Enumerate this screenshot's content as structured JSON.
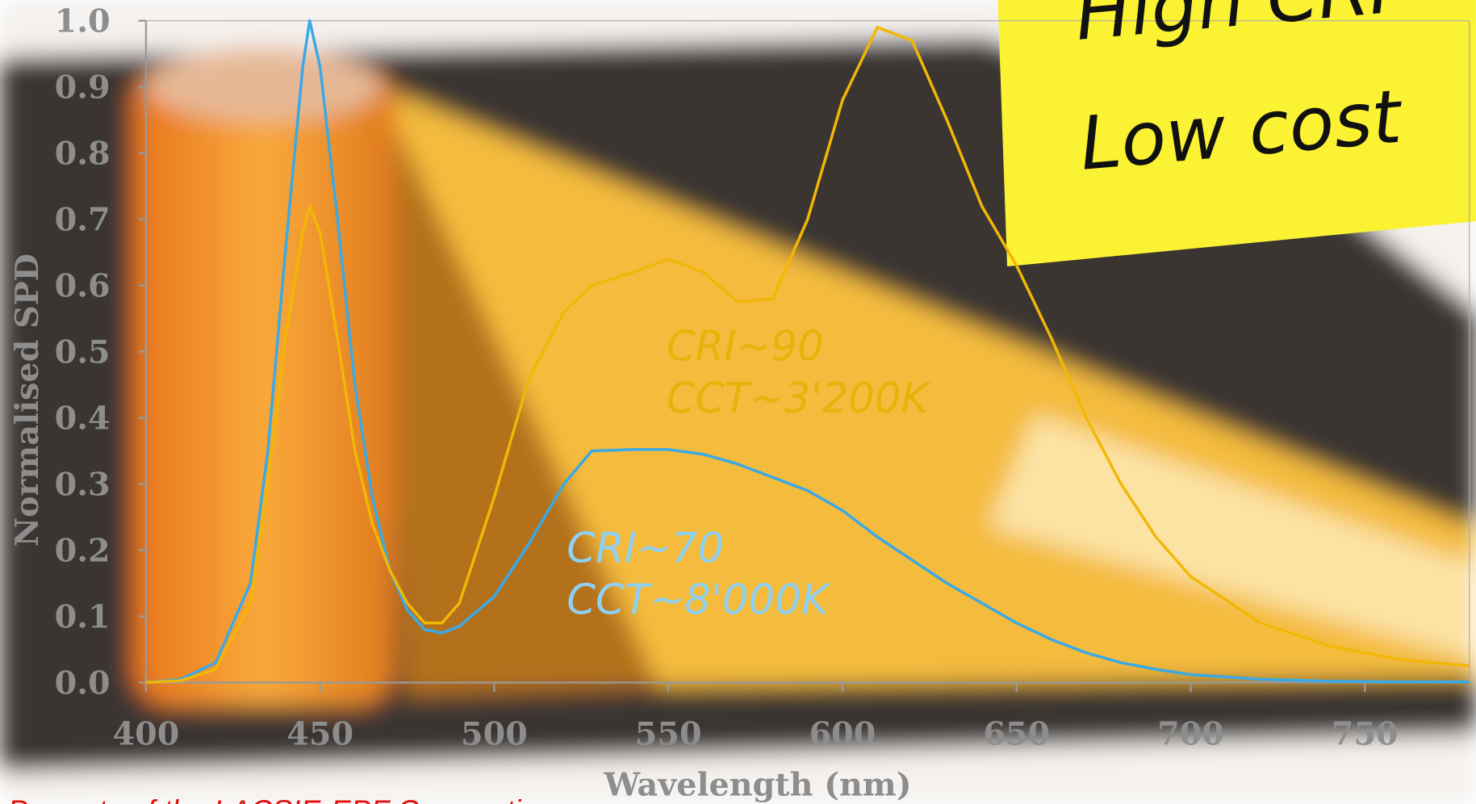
{
  "chart_data": {
    "type": "line",
    "x_label": "Wavelength (nm)",
    "y_label": "Normalised SPD",
    "x": [
      400,
      410,
      420,
      430,
      435,
      440,
      445,
      447,
      450,
      455,
      460,
      465,
      470,
      475,
      480,
      485,
      490,
      500,
      510,
      520,
      528,
      540,
      550,
      560,
      570,
      580,
      590,
      600,
      610,
      620,
      630,
      640,
      650,
      660,
      670,
      680,
      690,
      700,
      720,
      740,
      760,
      780
    ],
    "series": [
      {
        "name": "CRI~70 CCT~8'000K",
        "color": "#3aa9e6",
        "values": [
          0,
          0.005,
          0.03,
          0.15,
          0.35,
          0.65,
          0.93,
          1.0,
          0.93,
          0.7,
          0.45,
          0.28,
          0.17,
          0.11,
          0.08,
          0.075,
          0.085,
          0.13,
          0.21,
          0.3,
          0.35,
          0.352,
          0.352,
          0.345,
          0.33,
          0.31,
          0.29,
          0.26,
          0.22,
          0.185,
          0.15,
          0.12,
          0.09,
          0.065,
          0.045,
          0.03,
          0.02,
          0.012,
          0.005,
          0.002,
          0.001,
          0.001
        ]
      },
      {
        "name": "CRI~90 CCT~3'200K",
        "color": "#f2b705",
        "values": [
          0,
          0.003,
          0.02,
          0.12,
          0.3,
          0.52,
          0.68,
          0.72,
          0.68,
          0.52,
          0.35,
          0.24,
          0.17,
          0.12,
          0.09,
          0.09,
          0.12,
          0.28,
          0.46,
          0.56,
          0.6,
          0.62,
          0.64,
          0.62,
          0.575,
          0.58,
          0.7,
          0.88,
          0.99,
          0.97,
          0.85,
          0.72,
          0.63,
          0.52,
          0.4,
          0.3,
          0.22,
          0.16,
          0.09,
          0.055,
          0.035,
          0.025
        ]
      }
    ],
    "xlim": [
      400,
      780
    ],
    "ylim": [
      0,
      1
    ],
    "xticks": [
      400,
      450,
      500,
      550,
      600,
      650,
      700,
      750
    ],
    "yticks": [
      {
        "value": 0,
        "label": "0.0"
      },
      0.1,
      0.2,
      0.3,
      0.4,
      0.5,
      0.6,
      0.7,
      0.8,
      0.9,
      {
        "value": 1,
        "label": "1.0"
      }
    ],
    "annotations": [
      "CRI~90",
      "CCT~3'200K",
      "CRI~70",
      "CCT~8'000K"
    ],
    "note": [
      "High CRI",
      "Low cost"
    ],
    "footer": "Property of the LACSIE-EPF Corporation"
  }
}
